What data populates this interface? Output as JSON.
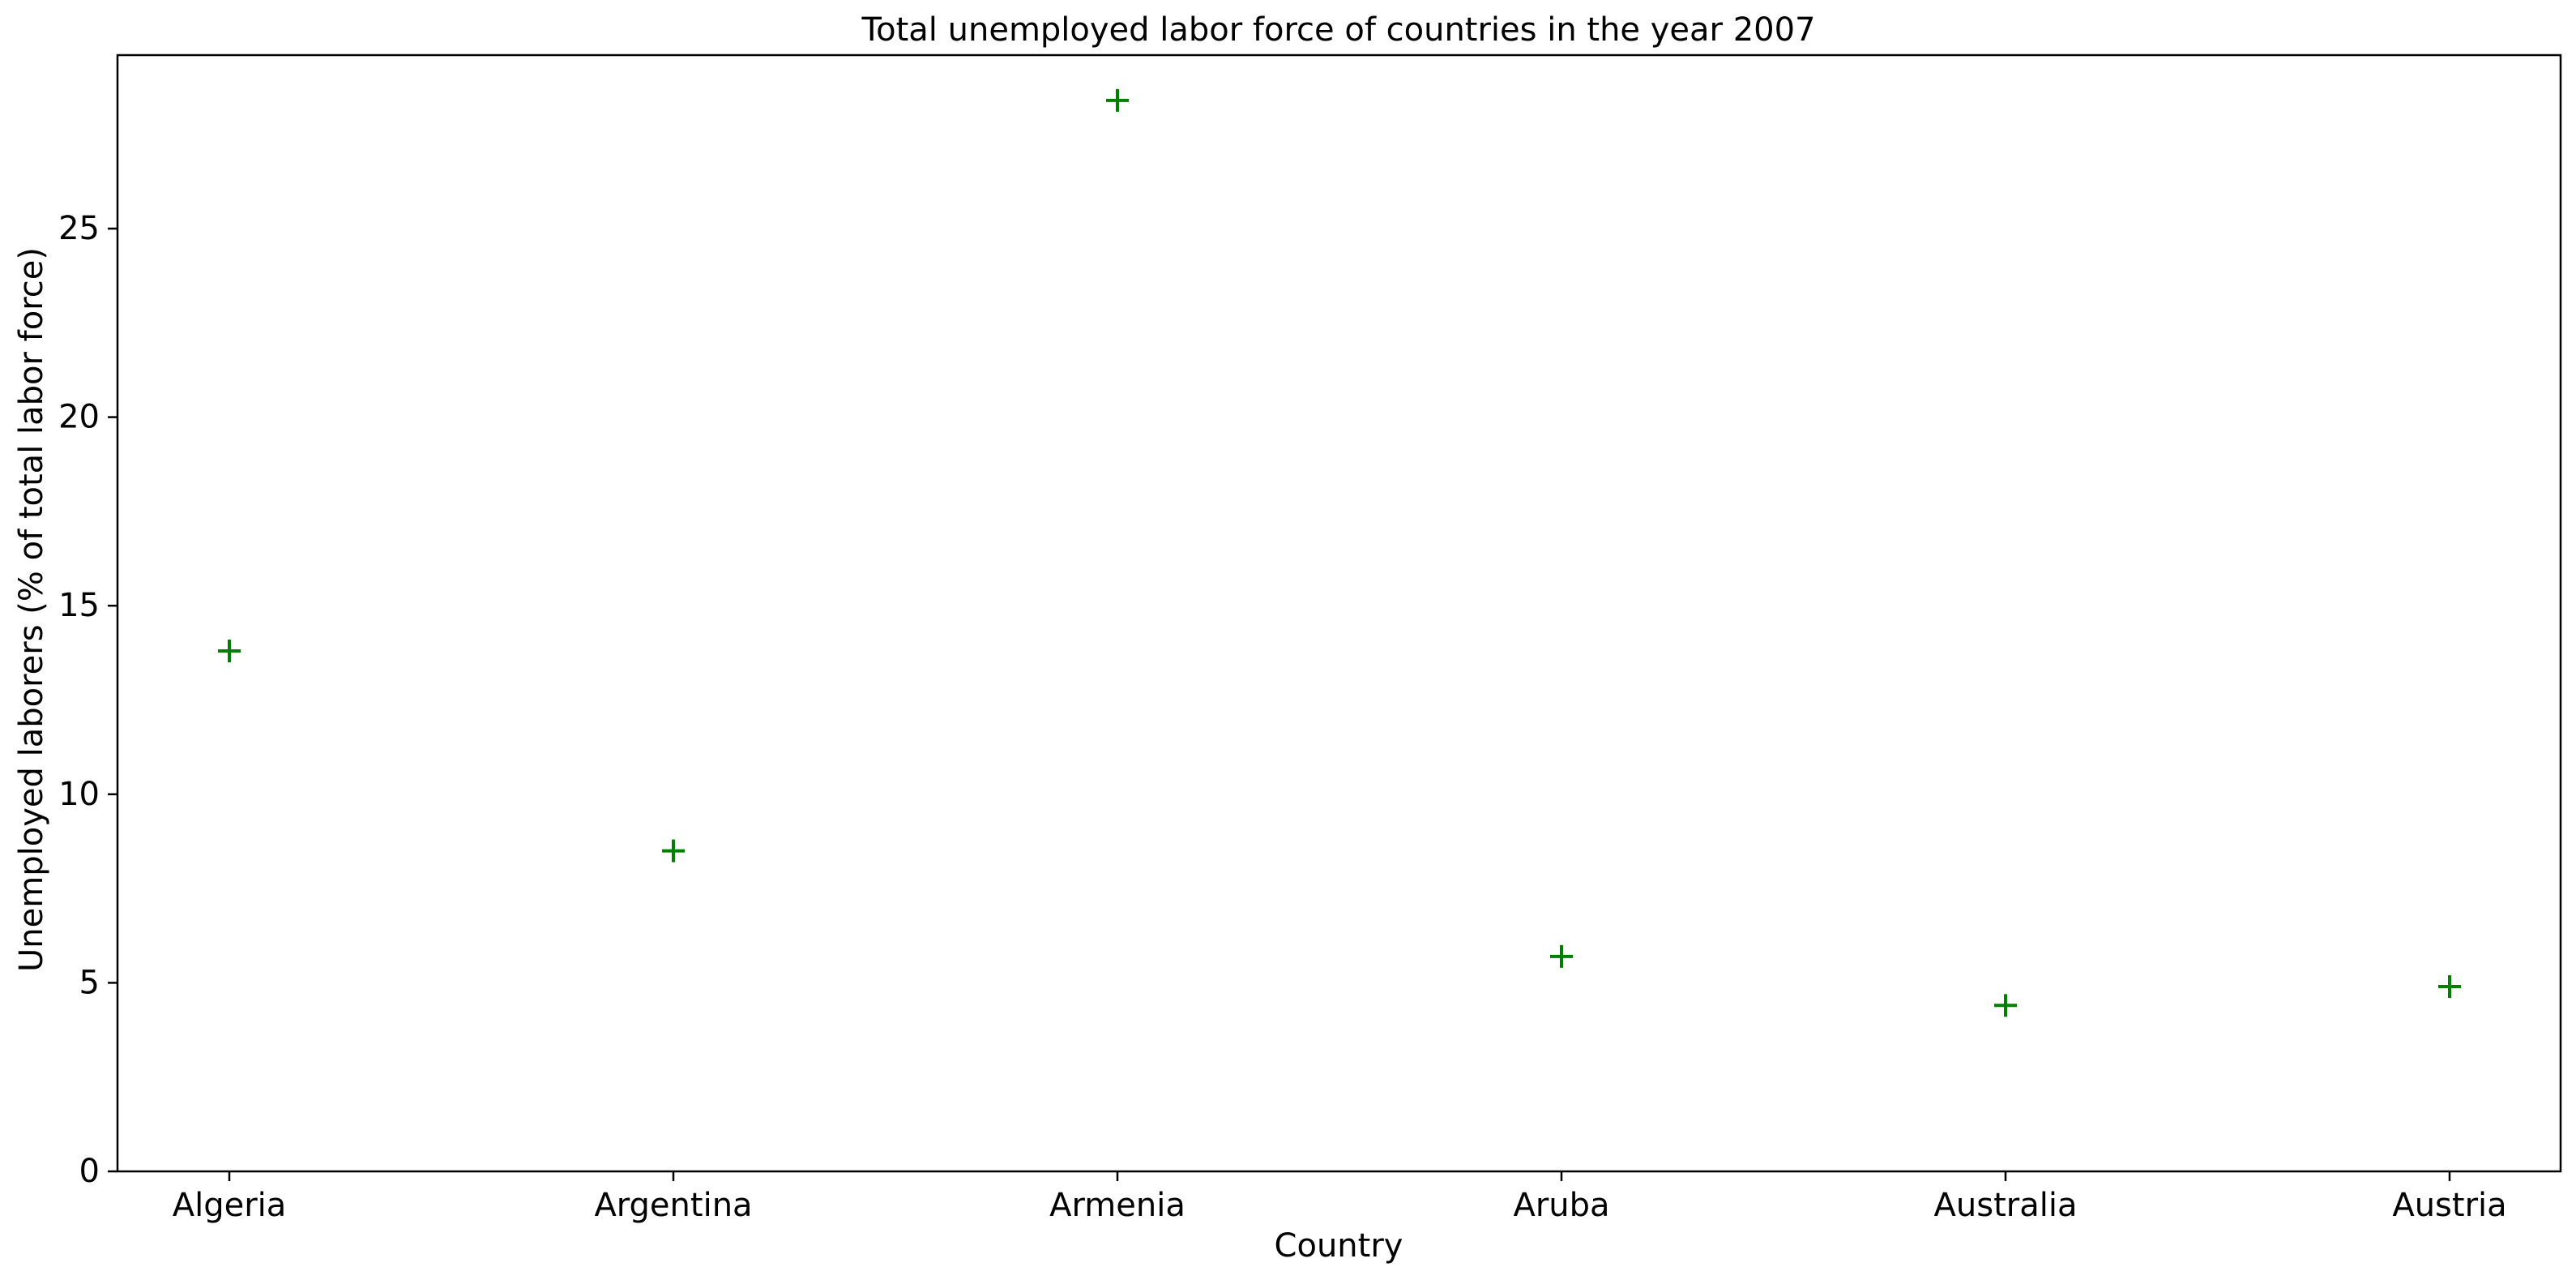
{
  "chart_data": {
    "type": "scatter",
    "title": "Total unemployed labor force of countries in the year 2007",
    "xlabel": "Country",
    "ylabel": "Unemployed laborers (% of total labor force)",
    "categories": [
      "Algeria",
      "Argentina",
      "Armenia",
      "Aruba",
      "Australia",
      "Austria"
    ],
    "series": [
      {
        "values": [
          13.8,
          8.5,
          28.4,
          5.7,
          4.4,
          4.9
        ]
      }
    ],
    "ylim": [
      0,
      29.6
    ],
    "yticks": [
      0,
      5,
      10,
      15,
      20,
      25
    ],
    "marker": "+",
    "marker_color": "#008000",
    "grid": false
  }
}
